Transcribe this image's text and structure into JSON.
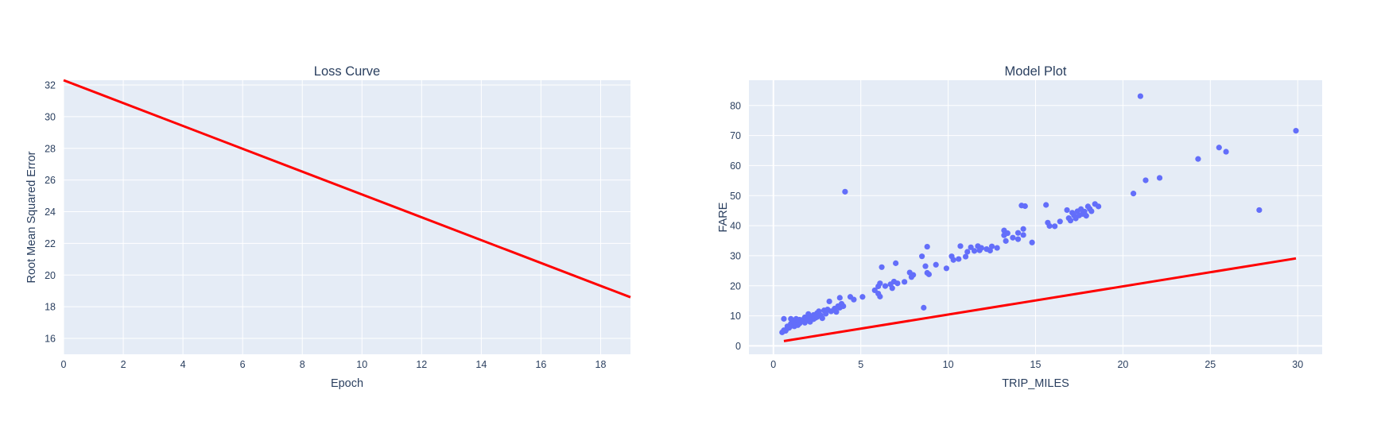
{
  "chart_data": [
    {
      "type": "line",
      "title": "Loss Curve",
      "xlabel": "Epoch",
      "ylabel": "Root Mean Squared Error",
      "xlim": [
        0,
        19
      ],
      "ylim": [
        15,
        32.3
      ],
      "xticks": [
        0,
        2,
        4,
        6,
        8,
        10,
        12,
        14,
        16,
        18
      ],
      "yticks": [
        16,
        18,
        20,
        22,
        24,
        26,
        28,
        30,
        32
      ],
      "grid": true,
      "series": [
        {
          "color": "#ff0000",
          "x": [
            0,
            19
          ],
          "y": [
            32.3,
            18.6
          ]
        }
      ]
    },
    {
      "type": "scatter",
      "title": "Model Plot",
      "xlabel": "TRIP_MILES",
      "ylabel": "FARE",
      "xlim": [
        -1.4,
        31.4
      ],
      "ylim": [
        -2.8,
        88.4
      ],
      "xticks": [
        0,
        5,
        10,
        15,
        20,
        25,
        30
      ],
      "yticks": [
        0,
        10,
        20,
        30,
        40,
        50,
        60,
        70,
        80
      ],
      "grid": true,
      "points_color": "#636efa",
      "line_color": "#ff0000",
      "line": {
        "x": [
          0.6,
          29.9
        ],
        "y": [
          1.6,
          29.1
        ]
      },
      "points": [
        [
          0.5,
          4.5
        ],
        [
          0.6,
          5.2
        ],
        [
          0.6,
          9.0
        ],
        [
          0.7,
          5.0
        ],
        [
          0.8,
          5.8
        ],
        [
          0.8,
          6.5
        ],
        [
          0.9,
          6.0
        ],
        [
          1.0,
          6.6
        ],
        [
          1.0,
          7.4
        ],
        [
          1.0,
          9.0
        ],
        [
          1.1,
          7.0
        ],
        [
          1.1,
          8.2
        ],
        [
          1.2,
          6.5
        ],
        [
          1.2,
          7.8
        ],
        [
          1.3,
          7.2
        ],
        [
          1.3,
          9.0
        ],
        [
          1.4,
          8.0
        ],
        [
          1.4,
          6.9
        ],
        [
          1.5,
          7.5
        ],
        [
          1.5,
          8.7
        ],
        [
          1.6,
          8.2
        ],
        [
          1.7,
          8.7
        ],
        [
          1.8,
          7.7
        ],
        [
          1.8,
          9.5
        ],
        [
          1.9,
          8.6
        ],
        [
          2.0,
          10.6
        ],
        [
          2.0,
          9.0
        ],
        [
          2.1,
          8.0
        ],
        [
          2.2,
          9.6
        ],
        [
          2.3,
          10.3
        ],
        [
          2.3,
          8.9
        ],
        [
          2.4,
          9.3
        ],
        [
          2.5,
          10.9
        ],
        [
          2.5,
          9.6
        ],
        [
          2.6,
          11.5
        ],
        [
          2.7,
          10.2
        ],
        [
          2.8,
          9.2
        ],
        [
          2.9,
          11.8
        ],
        [
          3.0,
          10.7
        ],
        [
          3.1,
          12.1
        ],
        [
          3.2,
          14.8
        ],
        [
          3.3,
          11.5
        ],
        [
          3.5,
          12.4
        ],
        [
          3.6,
          11.3
        ],
        [
          3.7,
          13.2
        ],
        [
          3.8,
          12.7
        ],
        [
          3.8,
          16.0
        ],
        [
          3.9,
          14.0
        ],
        [
          4.0,
          13.2
        ],
        [
          4.1,
          51.3
        ],
        [
          4.4,
          16.3
        ],
        [
          4.6,
          15.4
        ],
        [
          5.1,
          16.3
        ],
        [
          5.8,
          18.5
        ],
        [
          6.0,
          19.8
        ],
        [
          6.0,
          17.4
        ],
        [
          6.1,
          20.8
        ],
        [
          6.1,
          16.4
        ],
        [
          6.2,
          26.2
        ],
        [
          6.4,
          19.9
        ],
        [
          6.7,
          20.5
        ],
        [
          6.8,
          19.2
        ],
        [
          6.9,
          21.4
        ],
        [
          7.0,
          27.5
        ],
        [
          7.1,
          20.8
        ],
        [
          7.5,
          21.3
        ],
        [
          7.8,
          24.4
        ],
        [
          7.9,
          22.9
        ],
        [
          8.0,
          23.6
        ],
        [
          8.5,
          29.8
        ],
        [
          8.6,
          12.7
        ],
        [
          8.7,
          26.5
        ],
        [
          8.8,
          24.3
        ],
        [
          8.8,
          33.0
        ],
        [
          8.9,
          23.8
        ],
        [
          9.3,
          27.0
        ],
        [
          9.9,
          25.8
        ],
        [
          10.2,
          29.8
        ],
        [
          10.3,
          28.6
        ],
        [
          10.6,
          28.9
        ],
        [
          10.7,
          33.2
        ],
        [
          11.0,
          29.7
        ],
        [
          11.1,
          31.3
        ],
        [
          11.3,
          32.8
        ],
        [
          11.5,
          31.6
        ],
        [
          11.7,
          33.2
        ],
        [
          11.8,
          31.8
        ],
        [
          11.9,
          32.6
        ],
        [
          12.2,
          32.2
        ],
        [
          12.4,
          31.7
        ],
        [
          12.5,
          33.1
        ],
        [
          12.8,
          32.6
        ],
        [
          13.2,
          36.8
        ],
        [
          13.2,
          38.4
        ],
        [
          13.3,
          34.9
        ],
        [
          13.4,
          37.5
        ],
        [
          13.7,
          36.0
        ],
        [
          14.0,
          35.5
        ],
        [
          14.0,
          37.6
        ],
        [
          14.2,
          46.7
        ],
        [
          14.3,
          38.9
        ],
        [
          14.3,
          36.9
        ],
        [
          14.4,
          46.5
        ],
        [
          14.8,
          34.4
        ],
        [
          15.6,
          46.9
        ],
        [
          15.7,
          41.0
        ],
        [
          15.8,
          39.9
        ],
        [
          16.1,
          39.8
        ],
        [
          16.4,
          41.4
        ],
        [
          16.8,
          45.2
        ],
        [
          16.9,
          42.5
        ],
        [
          17.0,
          41.7
        ],
        [
          17.1,
          44.3
        ],
        [
          17.2,
          43.4
        ],
        [
          17.3,
          42.4
        ],
        [
          17.4,
          44.8
        ],
        [
          17.5,
          43.4
        ],
        [
          17.6,
          45.5
        ],
        [
          17.7,
          43.9
        ],
        [
          17.8,
          44.7
        ],
        [
          17.9,
          43.3
        ],
        [
          18.0,
          46.4
        ],
        [
          18.1,
          45.6
        ],
        [
          18.2,
          44.8
        ],
        [
          18.4,
          47.2
        ],
        [
          18.6,
          46.4
        ],
        [
          20.6,
          50.7
        ],
        [
          21.0,
          83.1
        ],
        [
          21.3,
          55.1
        ],
        [
          22.1,
          55.9
        ],
        [
          24.3,
          62.2
        ],
        [
          25.5,
          66.0
        ],
        [
          25.9,
          64.6
        ],
        [
          27.8,
          45.2
        ],
        [
          29.9,
          71.6
        ]
      ]
    }
  ]
}
